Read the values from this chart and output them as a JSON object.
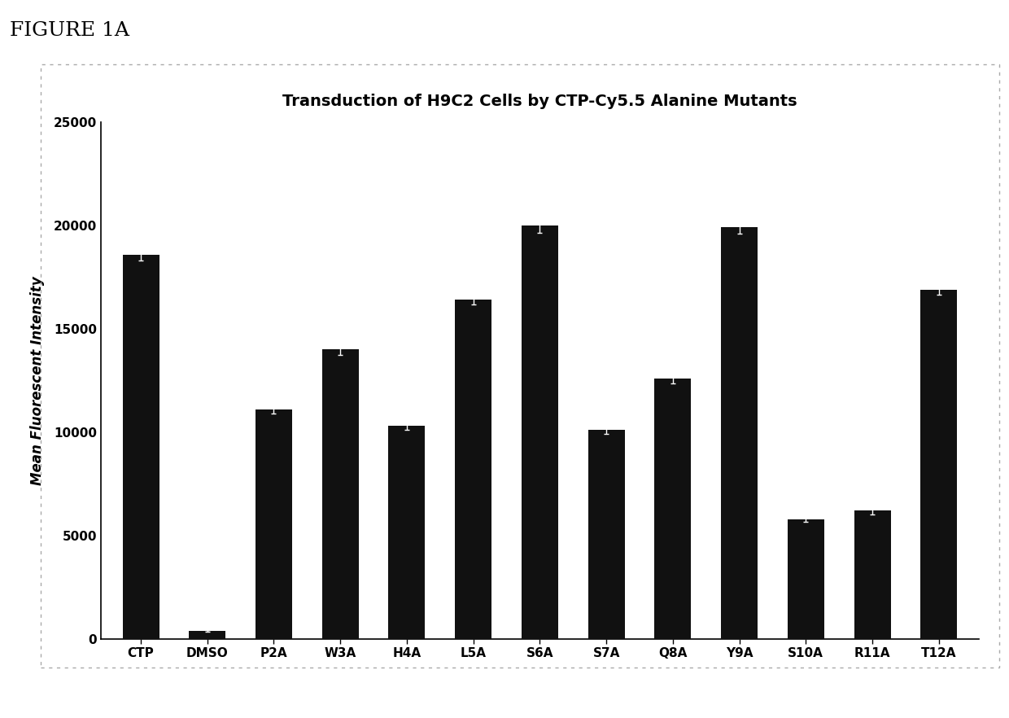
{
  "title": "Transduction of H9C2 Cells by CTP-Cy5.5 Alanine Mutants",
  "ylabel": "Mean Fluorescent Intensity",
  "categories": [
    "CTP",
    "DMSO",
    "P2A",
    "W3A",
    "H4A",
    "L5A",
    "S6A",
    "S7A",
    "Q8A",
    "Y9A",
    "S10A",
    "R11A",
    "T12A"
  ],
  "values": [
    18600,
    400,
    11100,
    14000,
    10300,
    16400,
    20000,
    10100,
    12600,
    19900,
    5800,
    6200,
    16900
  ],
  "errors": [
    300,
    50,
    200,
    250,
    180,
    220,
    350,
    180,
    250,
    300,
    150,
    180,
    250
  ],
  "bar_color": "#111111",
  "error_color": "#555555",
  "ylim": [
    0,
    25000
  ],
  "yticks": [
    0,
    5000,
    10000,
    15000,
    20000,
    25000
  ],
  "figure_label": "FIGURE 1A",
  "background_color": "#ffffff",
  "spine_color": "#000000",
  "title_fontsize": 14,
  "label_fontsize": 12,
  "tick_fontsize": 11,
  "figure_label_fontsize": 18,
  "border_color": "#aaaaaa",
  "bar_width": 0.55
}
